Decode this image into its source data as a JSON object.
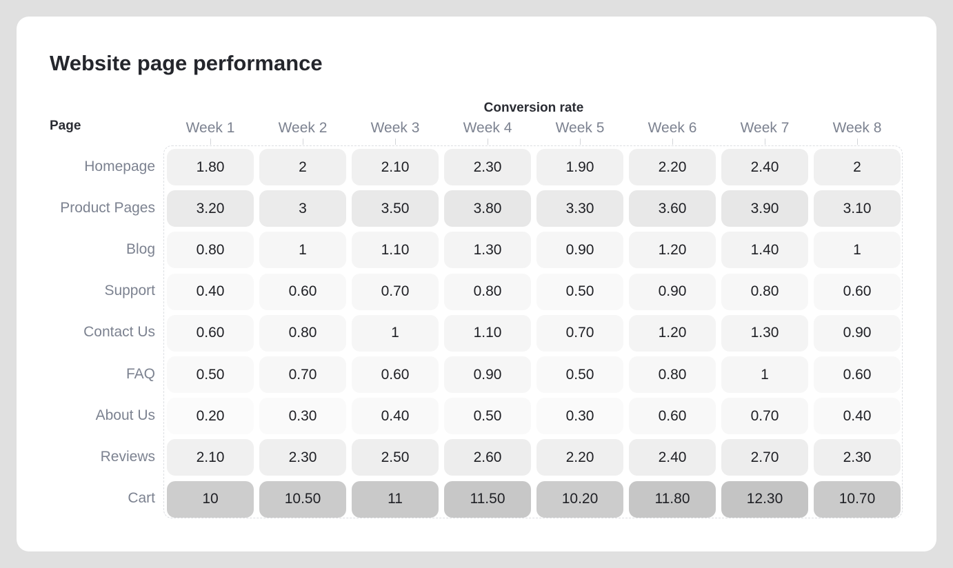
{
  "chart_data": {
    "type": "heatmap",
    "title": "Website page performance",
    "ylabel": "Page",
    "xlabel": "Conversion rate",
    "columns": [
      "Week 1",
      "Week 2",
      "Week 3",
      "Week 4",
      "Week 5",
      "Week 6",
      "Week 7",
      "Week 8"
    ],
    "rows": [
      "Homepage",
      "Product Pages",
      "Blog",
      "Support",
      "Contact Us",
      "FAQ",
      "About Us",
      "Reviews",
      "Cart"
    ],
    "values": [
      [
        1.8,
        2,
        2.1,
        2.3,
        1.9,
        2.2,
        2.4,
        2
      ],
      [
        3.2,
        3,
        3.5,
        3.8,
        3.3,
        3.6,
        3.9,
        3.1
      ],
      [
        0.8,
        1,
        1.1,
        1.3,
        0.9,
        1.2,
        1.4,
        1
      ],
      [
        0.4,
        0.6,
        0.7,
        0.8,
        0.5,
        0.9,
        0.8,
        0.6
      ],
      [
        0.6,
        0.8,
        1,
        1.1,
        0.7,
        1.2,
        1.3,
        0.9
      ],
      [
        0.5,
        0.7,
        0.6,
        0.9,
        0.5,
        0.8,
        1,
        0.6
      ],
      [
        0.2,
        0.3,
        0.4,
        0.5,
        0.3,
        0.6,
        0.7,
        0.4
      ],
      [
        2.1,
        2.3,
        2.5,
        2.6,
        2.2,
        2.4,
        2.7,
        2.3
      ],
      [
        10,
        10.5,
        11,
        11.5,
        10.2,
        11.8,
        12.3,
        10.7
      ]
    ],
    "labels": [
      [
        "1.80",
        "2",
        "2.10",
        "2.30",
        "1.90",
        "2.20",
        "2.40",
        "2"
      ],
      [
        "3.20",
        "3",
        "3.50",
        "3.80",
        "3.30",
        "3.60",
        "3.90",
        "3.10"
      ],
      [
        "0.80",
        "1",
        "1.10",
        "1.30",
        "0.90",
        "1.20",
        "1.40",
        "1"
      ],
      [
        "0.40",
        "0.60",
        "0.70",
        "0.80",
        "0.50",
        "0.90",
        "0.80",
        "0.60"
      ],
      [
        "0.60",
        "0.80",
        "1",
        "1.10",
        "0.70",
        "1.20",
        "1.30",
        "0.90"
      ],
      [
        "0.50",
        "0.70",
        "0.60",
        "0.90",
        "0.50",
        "0.80",
        "1",
        "0.60"
      ],
      [
        "0.20",
        "0.30",
        "0.40",
        "0.50",
        "0.30",
        "0.60",
        "0.70",
        "0.40"
      ],
      [
        "2.10",
        "2.30",
        "2.50",
        "2.60",
        "2.20",
        "2.40",
        "2.70",
        "2.30"
      ],
      [
        "10",
        "10.50",
        "11",
        "11.50",
        "10.20",
        "11.80",
        "12.30",
        "10.70"
      ]
    ],
    "color_scale": {
      "low": "#fbfbfb",
      "high": "#c4c4c4",
      "min": 0.2,
      "max": 12.3
    }
  }
}
